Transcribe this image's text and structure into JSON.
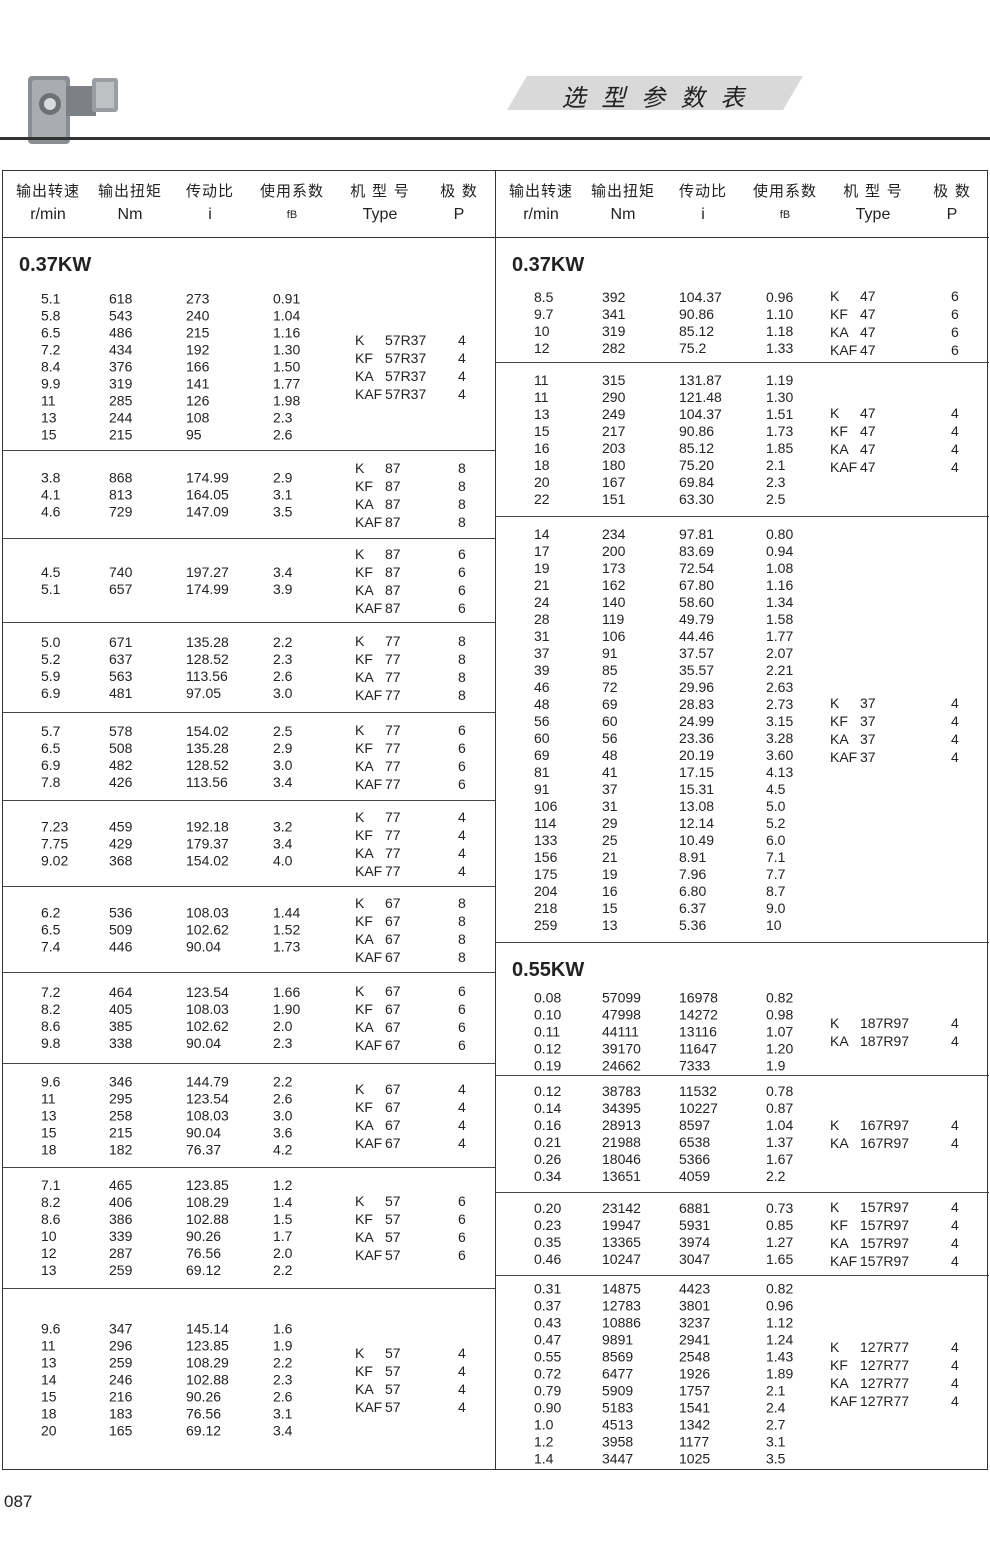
{
  "header": {
    "title": "选 型 参 数 表",
    "product_image": "k-series-helical-bevel-gearmotor"
  },
  "columns": [
    {
      "zh": "输出转速",
      "en": "r/min"
    },
    {
      "zh": "输出扭矩",
      "en": "Nm"
    },
    {
      "zh": "传动比",
      "en": "i"
    },
    {
      "zh": "使用系数",
      "en": "fB"
    },
    {
      "zh": "机 型 号",
      "en": "Type"
    },
    {
      "zh": "极  数",
      "en": "P"
    }
  ],
  "left": {
    "groups": [
      {
        "heading": "0.37KW",
        "rows": [
          [
            "5.1",
            "618",
            "273",
            "0.91"
          ],
          [
            "5.8",
            "543",
            "240",
            "1.04"
          ],
          [
            "6.5",
            "486",
            "215",
            "1.16"
          ],
          [
            "7.2",
            "434",
            "192",
            "1.30"
          ],
          [
            "8.4",
            "376",
            "166",
            "1.50"
          ],
          [
            "9.9",
            "319",
            "141",
            "1.77"
          ],
          [
            "11",
            "285",
            "126",
            "1.98"
          ],
          [
            "13",
            "244",
            "108",
            "2.3"
          ],
          [
            "15",
            "215",
            "95",
            "2.6"
          ]
        ],
        "types": [
          [
            "K",
            "57R37",
            "4"
          ],
          [
            "KF",
            "57R37",
            "4"
          ],
          [
            "KA",
            "57R37",
            "4"
          ],
          [
            "KAF",
            "57R37",
            "4"
          ]
        ]
      },
      {
        "rows": [
          [
            "3.8",
            "868",
            "174.99",
            "2.9"
          ],
          [
            "4.1",
            "813",
            "164.05",
            "3.1"
          ],
          [
            "4.6",
            "729",
            "147.09",
            "3.5"
          ]
        ],
        "types": [
          [
            "K",
            "87",
            "8"
          ],
          [
            "KF",
            "87",
            "8"
          ],
          [
            "KA",
            "87",
            "8"
          ],
          [
            "KAF",
            "87",
            "8"
          ]
        ]
      },
      {
        "rows": [
          [
            "4.5",
            "740",
            "197.27",
            "3.4"
          ],
          [
            "5.1",
            "657",
            "174.99",
            "3.9"
          ]
        ],
        "types": [
          [
            "K",
            "87",
            "6"
          ],
          [
            "KF",
            "87",
            "6"
          ],
          [
            "KA",
            "87",
            "6"
          ],
          [
            "KAF",
            "87",
            "6"
          ]
        ]
      },
      {
        "rows": [
          [
            "5.0",
            "671",
            "135.28",
            "2.2"
          ],
          [
            "5.2",
            "637",
            "128.52",
            "2.3"
          ],
          [
            "5.9",
            "563",
            "113.56",
            "2.6"
          ],
          [
            "6.9",
            "481",
            "97.05",
            "3.0"
          ]
        ],
        "types": [
          [
            "K",
            "77",
            "8"
          ],
          [
            "KF",
            "77",
            "8"
          ],
          [
            "KA",
            "77",
            "8"
          ],
          [
            "KAF",
            "77",
            "8"
          ]
        ]
      },
      {
        "rows": [
          [
            "5.7",
            "578",
            "154.02",
            "2.5"
          ],
          [
            "6.5",
            "508",
            "135.28",
            "2.9"
          ],
          [
            "6.9",
            "482",
            "128.52",
            "3.0"
          ],
          [
            "7.8",
            "426",
            "113.56",
            "3.4"
          ]
        ],
        "types": [
          [
            "K",
            "77",
            "6"
          ],
          [
            "KF",
            "77",
            "6"
          ],
          [
            "KA",
            "77",
            "6"
          ],
          [
            "KAF",
            "77",
            "6"
          ]
        ]
      },
      {
        "rows": [
          [
            "7.23",
            "459",
            "192.18",
            "3.2"
          ],
          [
            "7.75",
            "429",
            "179.37",
            "3.4"
          ],
          [
            "9.02",
            "368",
            "154.02",
            "4.0"
          ]
        ],
        "types": [
          [
            "K",
            "77",
            "4"
          ],
          [
            "KF",
            "77",
            "4"
          ],
          [
            "KA",
            "77",
            "4"
          ],
          [
            "KAF",
            "77",
            "4"
          ]
        ]
      },
      {
        "rows": [
          [
            "6.2",
            "536",
            "108.03",
            "1.44"
          ],
          [
            "6.5",
            "509",
            "102.62",
            "1.52"
          ],
          [
            "7.4",
            "446",
            "90.04",
            "1.73"
          ]
        ],
        "types": [
          [
            "K",
            "67",
            "8"
          ],
          [
            "KF",
            "67",
            "8"
          ],
          [
            "KA",
            "67",
            "8"
          ],
          [
            "KAF",
            "67",
            "8"
          ]
        ]
      },
      {
        "rows": [
          [
            "7.2",
            "464",
            "123.54",
            "1.66"
          ],
          [
            "8.2",
            "405",
            "108.03",
            "1.90"
          ],
          [
            "8.6",
            "385",
            "102.62",
            "2.0"
          ],
          [
            "9.8",
            "338",
            "90.04",
            "2.3"
          ]
        ],
        "types": [
          [
            "K",
            "67",
            "6"
          ],
          [
            "KF",
            "67",
            "6"
          ],
          [
            "KA",
            "67",
            "6"
          ],
          [
            "KAF",
            "67",
            "6"
          ]
        ]
      },
      {
        "rows": [
          [
            "9.6",
            "346",
            "144.79",
            "2.2"
          ],
          [
            "11",
            "295",
            "123.54",
            "2.6"
          ],
          [
            "13",
            "258",
            "108.03",
            "3.0"
          ],
          [
            "15",
            "215",
            "90.04",
            "3.6"
          ],
          [
            "18",
            "182",
            "76.37",
            "4.2"
          ]
        ],
        "types": [
          [
            "K",
            "67",
            "4"
          ],
          [
            "KF",
            "67",
            "4"
          ],
          [
            "KA",
            "67",
            "4"
          ],
          [
            "KAF",
            "67",
            "4"
          ]
        ]
      },
      {
        "rows": [
          [
            "7.1",
            "465",
            "123.85",
            "1.2"
          ],
          [
            "8.2",
            "406",
            "108.29",
            "1.4"
          ],
          [
            "8.6",
            "386",
            "102.88",
            "1.5"
          ],
          [
            "10",
            "339",
            "90.26",
            "1.7"
          ],
          [
            "12",
            "287",
            "76.56",
            "2.0"
          ],
          [
            "13",
            "259",
            "69.12",
            "2.2"
          ]
        ],
        "types": [
          [
            "K",
            "57",
            "6"
          ],
          [
            "KF",
            "57",
            "6"
          ],
          [
            "KA",
            "57",
            "6"
          ],
          [
            "KAF",
            "57",
            "6"
          ]
        ]
      },
      {
        "rows": [
          [
            "9.6",
            "347",
            "145.14",
            "1.6"
          ],
          [
            "11",
            "296",
            "123.85",
            "1.9"
          ],
          [
            "13",
            "259",
            "108.29",
            "2.2"
          ],
          [
            "14",
            "246",
            "102.88",
            "2.3"
          ],
          [
            "15",
            "216",
            "90.26",
            "2.6"
          ],
          [
            "18",
            "183",
            "76.56",
            "3.1"
          ],
          [
            "20",
            "165",
            "69.12",
            "3.4"
          ]
        ],
        "types": [
          [
            "K",
            "57",
            "4"
          ],
          [
            "KF",
            "57",
            "4"
          ],
          [
            "KA",
            "57",
            "4"
          ],
          [
            "KAF",
            "57",
            "4"
          ]
        ]
      }
    ]
  },
  "right": {
    "groups": [
      {
        "heading": "0.37KW",
        "rows": [
          [
            "8.5",
            "392",
            "104.37",
            "0.96"
          ],
          [
            "9.7",
            "341",
            "90.86",
            "1.10"
          ],
          [
            "10",
            "319",
            "85.12",
            "1.18"
          ],
          [
            "12",
            "282",
            "75.2",
            "1.33"
          ]
        ],
        "types": [
          [
            "K",
            "47",
            "6"
          ],
          [
            "KF",
            "47",
            "6"
          ],
          [
            "KA",
            "47",
            "6"
          ],
          [
            "KAF",
            "47",
            "6"
          ]
        ]
      },
      {
        "rows": [
          [
            "11",
            "315",
            "131.87",
            "1.19"
          ],
          [
            "11",
            "290",
            "121.48",
            "1.30"
          ],
          [
            "13",
            "249",
            "104.37",
            "1.51"
          ],
          [
            "15",
            "217",
            "90.86",
            "1.73"
          ],
          [
            "16",
            "203",
            "85.12",
            "1.85"
          ],
          [
            "18",
            "180",
            "75.20",
            "2.1"
          ],
          [
            "20",
            "167",
            "69.84",
            "2.3"
          ],
          [
            "22",
            "151",
            "63.30",
            "2.5"
          ]
        ],
        "types": [
          [
            "K",
            "47",
            "4"
          ],
          [
            "KF",
            "47",
            "4"
          ],
          [
            "KA",
            "47",
            "4"
          ],
          [
            "KAF",
            "47",
            "4"
          ]
        ]
      },
      {
        "rows": [
          [
            "14",
            "234",
            "97.81",
            "0.80"
          ],
          [
            "17",
            "200",
            "83.69",
            "0.94"
          ],
          [
            "19",
            "173",
            "72.54",
            "1.08"
          ],
          [
            "21",
            "162",
            "67.80",
            "1.16"
          ],
          [
            "24",
            "140",
            "58.60",
            "1.34"
          ],
          [
            "28",
            "119",
            "49.79",
            "1.58"
          ],
          [
            "31",
            "106",
            "44.46",
            "1.77"
          ],
          [
            "37",
            "91",
            "37.57",
            "2.07"
          ],
          [
            "39",
            "85",
            "35.57",
            "2.21"
          ],
          [
            "46",
            "72",
            "29.96",
            "2.63"
          ],
          [
            "48",
            "69",
            "28.83",
            "2.73"
          ],
          [
            "56",
            "60",
            "24.99",
            "3.15"
          ],
          [
            "60",
            "56",
            "23.36",
            "3.28"
          ],
          [
            "69",
            "48",
            "20.19",
            "3.60"
          ],
          [
            "81",
            "41",
            "17.15",
            "4.13"
          ],
          [
            "91",
            "37",
            "15.31",
            "4.5"
          ],
          [
            "106",
            "31",
            "13.08",
            "5.0"
          ],
          [
            "114",
            "29",
            "12.14",
            "5.2"
          ],
          [
            "133",
            "25",
            "10.49",
            "6.0"
          ],
          [
            "156",
            "21",
            "8.91",
            "7.1"
          ],
          [
            "175",
            "19",
            "7.96",
            "7.7"
          ],
          [
            "204",
            "16",
            "6.80",
            "8.7"
          ],
          [
            "218",
            "15",
            "6.37",
            "9.0"
          ],
          [
            "259",
            "13",
            "5.36",
            "10"
          ]
        ],
        "types": [
          [
            "K",
            "37",
            "4"
          ],
          [
            "KF",
            "37",
            "4"
          ],
          [
            "KA",
            "37",
            "4"
          ],
          [
            "KAF",
            "37",
            "4"
          ]
        ]
      },
      {
        "heading": "0.55KW",
        "rows": [
          [
            "0.08",
            "57099",
            "16978",
            "0.82"
          ],
          [
            "0.10",
            "47998",
            "14272",
            "0.98"
          ],
          [
            "0.11",
            "44111",
            "13116",
            "1.07"
          ],
          [
            "0.12",
            "39170",
            "11647",
            "1.20"
          ],
          [
            "0.19",
            "24662",
            "7333",
            "1.9"
          ]
        ],
        "types": [
          [
            "K",
            "187R97",
            "4"
          ],
          [
            "KA",
            "187R97",
            "4"
          ]
        ]
      },
      {
        "rows": [
          [
            "0.12",
            "38783",
            "11532",
            "0.78"
          ],
          [
            "0.14",
            "34395",
            "10227",
            "0.87"
          ],
          [
            "0.16",
            "28913",
            "8597",
            "1.04"
          ],
          [
            "0.21",
            "21988",
            "6538",
            "1.37"
          ],
          [
            "0.26",
            "18046",
            "5366",
            "1.67"
          ],
          [
            "0.34",
            "13651",
            "4059",
            "2.2"
          ]
        ],
        "types": [
          [
            "K",
            "167R97",
            "4"
          ],
          [
            "KA",
            "167R97",
            "4"
          ]
        ]
      },
      {
        "rows": [
          [
            "0.20",
            "23142",
            "6881",
            "0.73"
          ],
          [
            "0.23",
            "19947",
            "5931",
            "0.85"
          ],
          [
            "0.35",
            "13365",
            "3974",
            "1.27"
          ],
          [
            "0.46",
            "10247",
            "3047",
            "1.65"
          ]
        ],
        "types": [
          [
            "K",
            "157R97",
            "4"
          ],
          [
            "KF",
            "157R97",
            "4"
          ],
          [
            "KA",
            "157R97",
            "4"
          ],
          [
            "KAF",
            "157R97",
            "4"
          ]
        ]
      },
      {
        "rows": [
          [
            "0.31",
            "14875",
            "4423",
            "0.82"
          ],
          [
            "0.37",
            "12783",
            "3801",
            "0.96"
          ],
          [
            "0.43",
            "10886",
            "3237",
            "1.12"
          ],
          [
            "0.47",
            "9891",
            "2941",
            "1.24"
          ],
          [
            "0.55",
            "8569",
            "2548",
            "1.43"
          ],
          [
            "0.72",
            "6477",
            "1926",
            "1.89"
          ],
          [
            "0.79",
            "5909",
            "1757",
            "2.1"
          ],
          [
            "0.90",
            "5183",
            "1541",
            "2.4"
          ],
          [
            "1.0",
            "4513",
            "1342",
            "2.7"
          ],
          [
            "1.2",
            "3958",
            "1177",
            "3.1"
          ],
          [
            "1.4",
            "3447",
            "1025",
            "3.5"
          ]
        ],
        "types": [
          [
            "K",
            "127R77",
            "4"
          ],
          [
            "KF",
            "127R77",
            "4"
          ],
          [
            "KA",
            "127R77",
            "4"
          ],
          [
            "KAF",
            "127R77",
            "4"
          ]
        ]
      }
    ]
  },
  "footer": {
    "page_number": "087"
  }
}
